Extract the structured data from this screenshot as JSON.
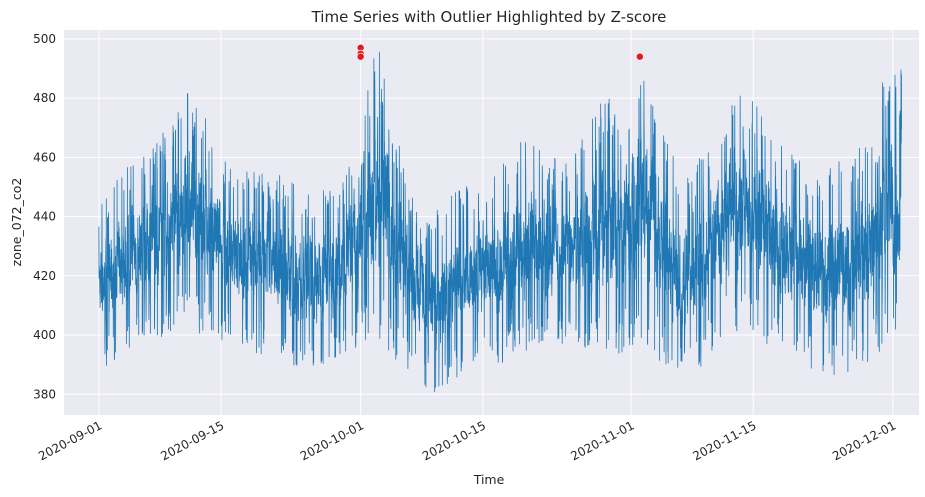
{
  "chart_data": {
    "type": "line",
    "title": "Time Series with Outlier Highlighted by Z-score",
    "xlabel": "Time",
    "ylabel": "zone_072_co2",
    "xlim": [
      "2020-08-28",
      "2020-12-04"
    ],
    "ylim": [
      373,
      503
    ],
    "x_ticks": [
      "2020-09-01",
      "2020-09-15",
      "2020-10-01",
      "2020-10-15",
      "2020-11-01",
      "2020-11-15",
      "2020-12-01"
    ],
    "y_ticks": [
      380,
      400,
      420,
      440,
      460,
      480,
      500
    ],
    "grid": true,
    "style": "seaborn-darkgrid",
    "series": [
      {
        "color": "#1f77b4",
        "x": [
          "2020-09-01",
          "2020-09-03",
          "2020-09-05",
          "2020-09-07",
          "2020-09-09",
          "2020-09-11",
          "2020-09-13",
          "2020-09-15",
          "2020-09-17",
          "2020-09-19",
          "2020-09-21",
          "2020-09-23",
          "2020-09-25",
          "2020-09-27",
          "2020-09-29",
          "2020-10-01",
          "2020-10-03",
          "2020-10-05",
          "2020-10-07",
          "2020-10-09",
          "2020-10-11",
          "2020-10-13",
          "2020-10-15",
          "2020-10-17",
          "2020-10-19",
          "2020-10-21",
          "2020-10-23",
          "2020-10-25",
          "2020-10-27",
          "2020-10-29",
          "2020-10-31",
          "2020-11-02",
          "2020-11-04",
          "2020-11-06",
          "2020-11-08",
          "2020-11-10",
          "2020-11-12",
          "2020-11-14",
          "2020-11-16",
          "2020-11-18",
          "2020-11-20",
          "2020-11-22",
          "2020-11-24",
          "2020-11-26",
          "2020-11-28",
          "2020-11-30",
          "2020-12-02"
        ],
        "low": [
          388,
          392,
          396,
          398,
          400,
          402,
          400,
          398,
          396,
          394,
          392,
          390,
          388,
          390,
          392,
          396,
          398,
          390,
          386,
          380,
          383,
          386,
          388,
          390,
          392,
          394,
          396,
          398,
          394,
          392,
          394,
          398,
          392,
          386,
          384,
          394,
          400,
          400,
          398,
          394,
          390,
          388,
          386,
          384,
          390,
          396,
          400
        ],
        "high": [
          446,
          452,
          460,
          466,
          470,
          484,
          476,
          462,
          454,
          458,
          456,
          452,
          448,
          450,
          452,
          480,
          498,
          470,
          450,
          440,
          446,
          452,
          456,
          458,
          466,
          470,
          460,
          458,
          472,
          482,
          478,
          494,
          478,
          460,
          452,
          470,
          480,
          484,
          478,
          466,
          460,
          456,
          458,
          460,
          466,
          488,
          490
        ]
      }
    ],
    "outliers": [
      {
        "x": "2020-10-01",
        "y": 497,
        "color": "#e41a1c"
      },
      {
        "x": "2020-10-01",
        "y": 495,
        "color": "#e41a1c"
      },
      {
        "x": "2020-10-01",
        "y": 494,
        "color": "#e41a1c"
      },
      {
        "x": "2020-11-02",
        "y": 494,
        "color": "#e41a1c"
      }
    ]
  }
}
